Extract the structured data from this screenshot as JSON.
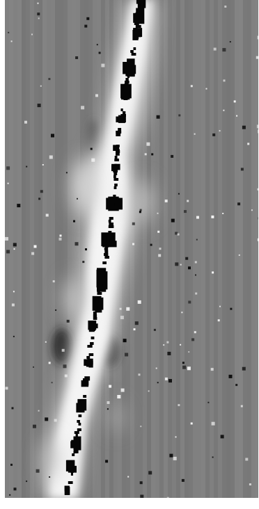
{
  "image": {
    "kind": "two-dimensional spectrum strip",
    "colors": {
      "background": "#7c7c7c",
      "trace_glow": "#f2f2f2",
      "trace_core": "#050505",
      "noise_light": "#f7f7f7",
      "noise_dark": "#0a0a0a",
      "column_dark": "#757575",
      "column_light": "#858585"
    }
  }
}
